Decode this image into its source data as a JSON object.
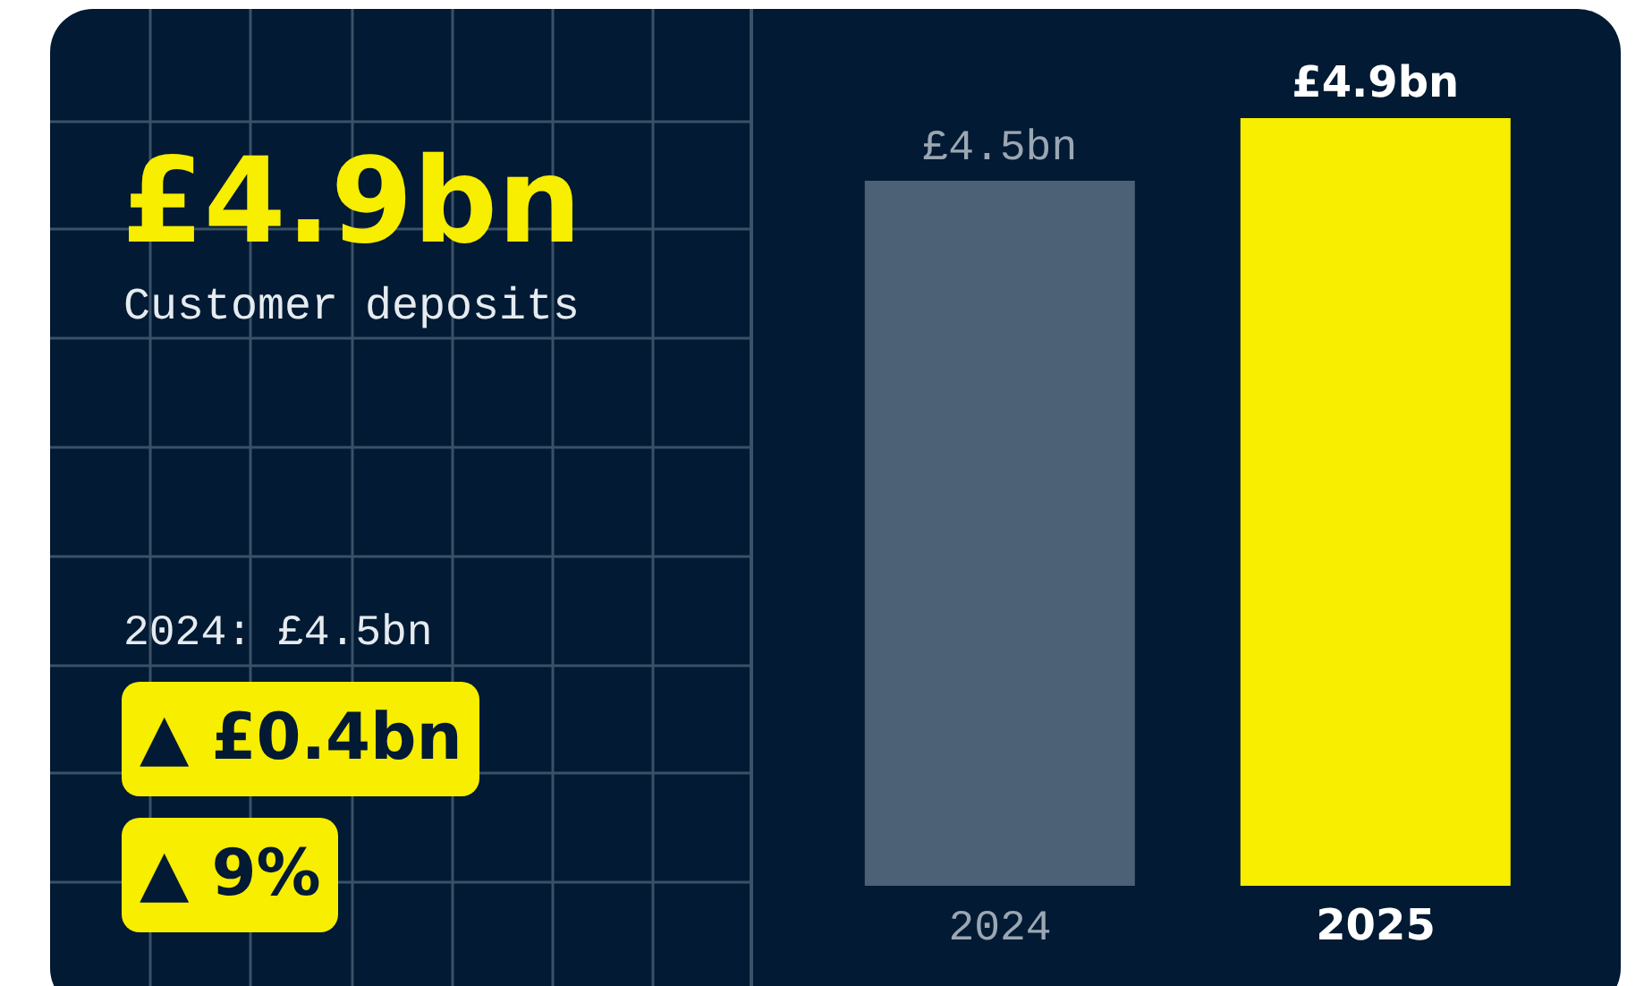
{
  "chart_data": {
    "type": "bar",
    "title": "£4.9bn",
    "subtitle": "Customer deposits",
    "categories": [
      "2024",
      "2025"
    ],
    "values": [
      4.5,
      4.9
    ],
    "colors": [
      "#4c6176",
      "#f7ee00"
    ],
    "value_labels": [
      "£4.5bn",
      "£4.9bn"
    ],
    "annotations": [
      "2024: £4.5bn",
      "▲ £0.4bn",
      "▲ 9%"
    ]
  }
}
